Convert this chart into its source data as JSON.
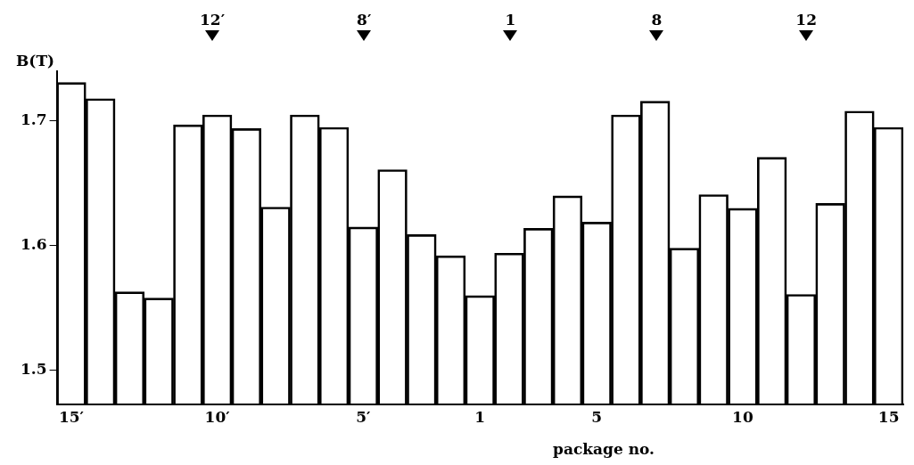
{
  "chart_data": {
    "type": "bar",
    "ylabel": "B(T)",
    "xlabel": "package no.",
    "categories": [
      "15′",
      null,
      null,
      null,
      null,
      "10′",
      null,
      null,
      null,
      null,
      "5′",
      null,
      null,
      null,
      "1",
      null,
      null,
      null,
      "5",
      null,
      null,
      null,
      null,
      "10",
      null,
      null,
      null,
      null,
      "15"
    ],
    "values": [
      1.731,
      1.718,
      1.563,
      1.558,
      1.697,
      1.705,
      1.694,
      1.631,
      1.705,
      1.695,
      1.615,
      1.661,
      1.609,
      1.592,
      1.56,
      1.594,
      1.614,
      1.64,
      1.619,
      1.705,
      1.716,
      1.598,
      1.641,
      1.63,
      1.671,
      1.561,
      1.634,
      1.708,
      1.695
    ],
    "color": "#000000",
    "ylim": [
      1.473,
      1.74
    ],
    "yticks": [
      1.5,
      1.6,
      1.7
    ],
    "annotations": [
      "12′",
      "8′",
      "1",
      "8",
      "12"
    ],
    "grid": false
  }
}
